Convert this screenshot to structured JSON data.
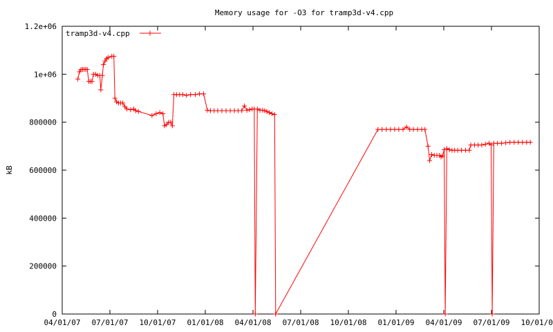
{
  "chart_data": {
    "type": "line",
    "title": "Memory usage for -O3 for tramp3d-v4.cpp",
    "ylabel": "kB",
    "xlabel": "",
    "xlim": [
      "2007-04-01",
      "2009-10-01"
    ],
    "ylim": [
      0,
      1200000
    ],
    "x_ticks": [
      "04/01/07",
      "07/01/07",
      "10/01/07",
      "01/01/08",
      "04/01/08",
      "07/01/08",
      "10/01/08",
      "01/01/09",
      "04/01/09",
      "07/01/09",
      "10/01/09"
    ],
    "y_ticks": [
      "0",
      "200000",
      "400000",
      "600000",
      "800000",
      "1e+06",
      "1.2e+06"
    ],
    "grid": false,
    "legend_position": "top-left",
    "series": [
      {
        "name": "tramp3d-v4.cpp",
        "color": "#ff0000",
        "marker": "plus",
        "points": [
          [
            "2007-05-01",
            980000
          ],
          [
            "2007-05-04",
            1010000
          ],
          [
            "2007-05-07",
            1020000
          ],
          [
            "2007-05-10",
            1020000
          ],
          [
            "2007-05-13",
            1020000
          ],
          [
            "2007-05-16",
            1020000
          ],
          [
            "2007-05-19",
            1020000
          ],
          [
            "2007-05-22",
            970000
          ],
          [
            "2007-05-25",
            970000
          ],
          [
            "2007-05-28",
            970000
          ],
          [
            "2007-05-31",
            1000000
          ],
          [
            "2007-06-04",
            1000000
          ],
          [
            "2007-06-08",
            995000
          ],
          [
            "2007-06-12",
            995000
          ],
          [
            "2007-06-14",
            935000
          ],
          [
            "2007-06-17",
            995000
          ],
          [
            "2007-06-19",
            1040000
          ],
          [
            "2007-06-22",
            1055000
          ],
          [
            "2007-06-25",
            1065000
          ],
          [
            "2007-06-28",
            1070000
          ],
          [
            "2007-07-05",
            1075000
          ],
          [
            "2007-07-09",
            1075000
          ],
          [
            "2007-07-11",
            900000
          ],
          [
            "2007-07-14",
            885000
          ],
          [
            "2007-07-18",
            880000
          ],
          [
            "2007-07-22",
            880000
          ],
          [
            "2007-07-26",
            880000
          ],
          [
            "2007-07-30",
            865000
          ],
          [
            "2007-08-03",
            855000
          ],
          [
            "2007-08-10",
            852000
          ],
          [
            "2007-08-16",
            855000
          ],
          [
            "2007-08-20",
            848000
          ],
          [
            "2007-08-25",
            845000
          ],
          [
            "2007-09-20",
            828000
          ],
          [
            "2007-09-28",
            835000
          ],
          [
            "2007-10-05",
            840000
          ],
          [
            "2007-10-11",
            835000
          ],
          [
            "2007-10-14",
            785000
          ],
          [
            "2007-10-18",
            790000
          ],
          [
            "2007-10-22",
            800000
          ],
          [
            "2007-10-26",
            800000
          ],
          [
            "2007-10-29",
            785000
          ],
          [
            "2007-11-01",
            915000
          ],
          [
            "2007-11-06",
            915000
          ],
          [
            "2007-11-12",
            915000
          ],
          [
            "2007-11-18",
            915000
          ],
          [
            "2007-11-25",
            912000
          ],
          [
            "2007-12-03",
            915000
          ],
          [
            "2007-12-12",
            915000
          ],
          [
            "2007-12-20",
            918000
          ],
          [
            "2007-12-28",
            918000
          ],
          [
            "2008-01-04",
            850000
          ],
          [
            "2008-01-10",
            848000
          ],
          [
            "2008-01-17",
            848000
          ],
          [
            "2008-01-24",
            848000
          ],
          [
            "2008-02-01",
            848000
          ],
          [
            "2008-02-09",
            848000
          ],
          [
            "2008-02-17",
            848000
          ],
          [
            "2008-02-25",
            848000
          ],
          [
            "2008-03-03",
            848000
          ],
          [
            "2008-03-10",
            848000
          ],
          [
            "2008-03-15",
            868000
          ],
          [
            "2008-03-20",
            850000
          ],
          [
            "2008-03-25",
            852000
          ],
          [
            "2008-03-30",
            855000
          ],
          [
            "2008-04-03",
            855000
          ],
          [
            "2008-04-05",
            0
          ],
          [
            "2008-04-09",
            855000
          ],
          [
            "2008-04-14",
            850000
          ],
          [
            "2008-04-19",
            850000
          ],
          [
            "2008-04-23",
            848000
          ],
          [
            "2008-04-27",
            845000
          ],
          [
            "2008-05-02",
            840000
          ],
          [
            "2008-05-07",
            835000
          ],
          [
            "2008-05-12",
            832000
          ],
          [
            "2008-05-14",
            0
          ],
          [
            "2008-11-26",
            770000
          ],
          [
            "2008-12-04",
            770000
          ],
          [
            "2008-12-12",
            770000
          ],
          [
            "2008-12-20",
            770000
          ],
          [
            "2008-12-28",
            770000
          ],
          [
            "2009-01-05",
            770000
          ],
          [
            "2009-01-13",
            770000
          ],
          [
            "2009-01-20",
            780000
          ],
          [
            "2009-01-26",
            770000
          ],
          [
            "2009-02-02",
            770000
          ],
          [
            "2009-02-10",
            770000
          ],
          [
            "2009-02-18",
            770000
          ],
          [
            "2009-02-24",
            770000
          ],
          [
            "2009-03-02",
            700000
          ],
          [
            "2009-03-05",
            640000
          ],
          [
            "2009-03-09",
            665000
          ],
          [
            "2009-03-14",
            662000
          ],
          [
            "2009-03-19",
            662000
          ],
          [
            "2009-03-24",
            662000
          ],
          [
            "2009-03-27",
            655000
          ],
          [
            "2009-03-30",
            660000
          ],
          [
            "2009-04-02",
            685000
          ],
          [
            "2009-04-04",
            0
          ],
          [
            "2009-04-07",
            690000
          ],
          [
            "2009-04-12",
            685000
          ],
          [
            "2009-04-17",
            683000
          ],
          [
            "2009-04-22",
            683000
          ],
          [
            "2009-04-28",
            683000
          ],
          [
            "2009-05-05",
            683000
          ],
          [
            "2009-05-13",
            683000
          ],
          [
            "2009-05-20",
            683000
          ],
          [
            "2009-05-23",
            705000
          ],
          [
            "2009-05-30",
            705000
          ],
          [
            "2009-06-06",
            705000
          ],
          [
            "2009-06-13",
            705000
          ],
          [
            "2009-06-20",
            708000
          ],
          [
            "2009-06-27",
            712000
          ],
          [
            "2009-07-01",
            705000
          ],
          [
            "2009-07-03",
            0
          ],
          [
            "2009-07-06",
            712000
          ],
          [
            "2009-07-13",
            712000
          ],
          [
            "2009-07-21",
            712000
          ],
          [
            "2009-07-29",
            714000
          ],
          [
            "2009-08-06",
            716000
          ],
          [
            "2009-08-14",
            716000
          ],
          [
            "2009-08-22",
            716000
          ],
          [
            "2009-08-30",
            716000
          ],
          [
            "2009-09-07",
            716000
          ],
          [
            "2009-09-14",
            716000
          ]
        ]
      }
    ]
  }
}
